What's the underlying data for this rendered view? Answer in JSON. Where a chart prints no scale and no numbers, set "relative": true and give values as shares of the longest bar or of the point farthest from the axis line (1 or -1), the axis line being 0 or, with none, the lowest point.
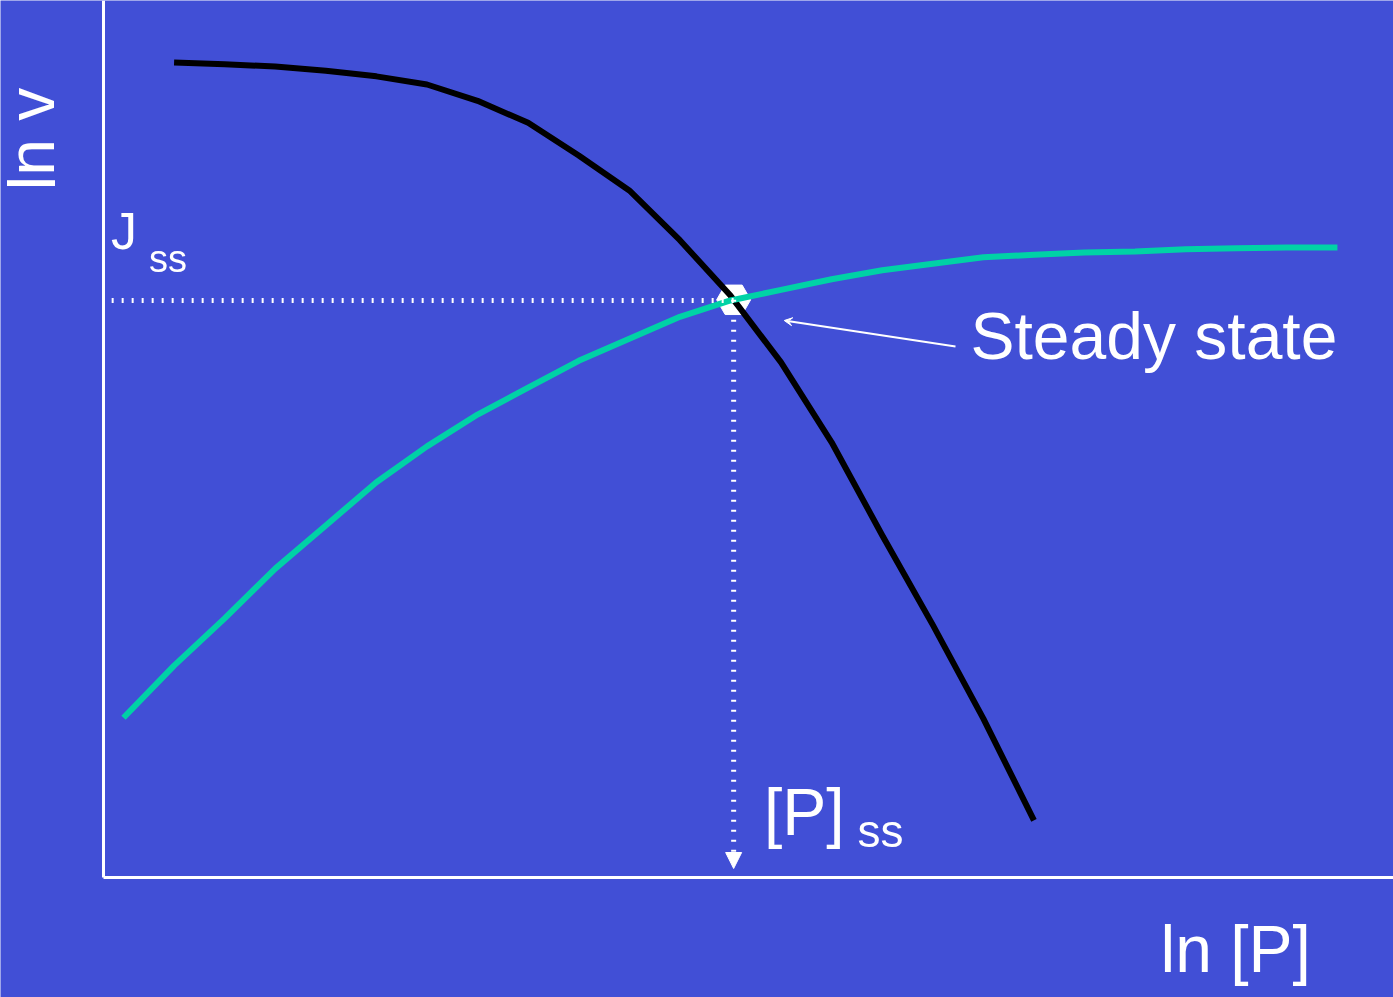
{
  "chart_data": {
    "type": "line",
    "relative": true,
    "xlabel": "ln [P]",
    "ylabel": "ln v",
    "categories": [
      null,
      null,
      null,
      null,
      null,
      null,
      null,
      null,
      null,
      null,
      null,
      null,
      null,
      null,
      null,
      null,
      null,
      null,
      null,
      null,
      null,
      null,
      null,
      null,
      null
    ],
    "series": [
      {
        "color": "#000000",
        "values": [
          null,
          1.0,
          0.998,
          0.995,
          0.99,
          0.983,
          0.973,
          0.953,
          0.926,
          0.886,
          0.843,
          0.782,
          0.714,
          0.632,
          0.534,
          0.42,
          0.31,
          0.195,
          0.07,
          null,
          null,
          null,
          null,
          null,
          null
        ]
      },
      {
        "color": "#00d2a6",
        "values": [
          0.196,
          0.26,
          0.318,
          0.379,
          0.432,
          0.485,
          0.529,
          0.568,
          0.601,
          0.634,
          0.661,
          0.688,
          0.708,
          0.721,
          0.734,
          0.745,
          0.753,
          0.761,
          0.764,
          0.767,
          0.768,
          0.771,
          0.772,
          0.773,
          0.773
        ]
      }
    ],
    "ref_lines": [
      {
        "axis": "y",
        "value": 0.708,
        "label": "J$_{ss}$",
        "color": "#ffffff",
        "line_style": "dotted"
      }
    ],
    "annotations": [
      "Steady state",
      "[P]$_{ss}$"
    ],
    "grid": false,
    "marker": "none",
    "line_style": "solid"
  }
}
